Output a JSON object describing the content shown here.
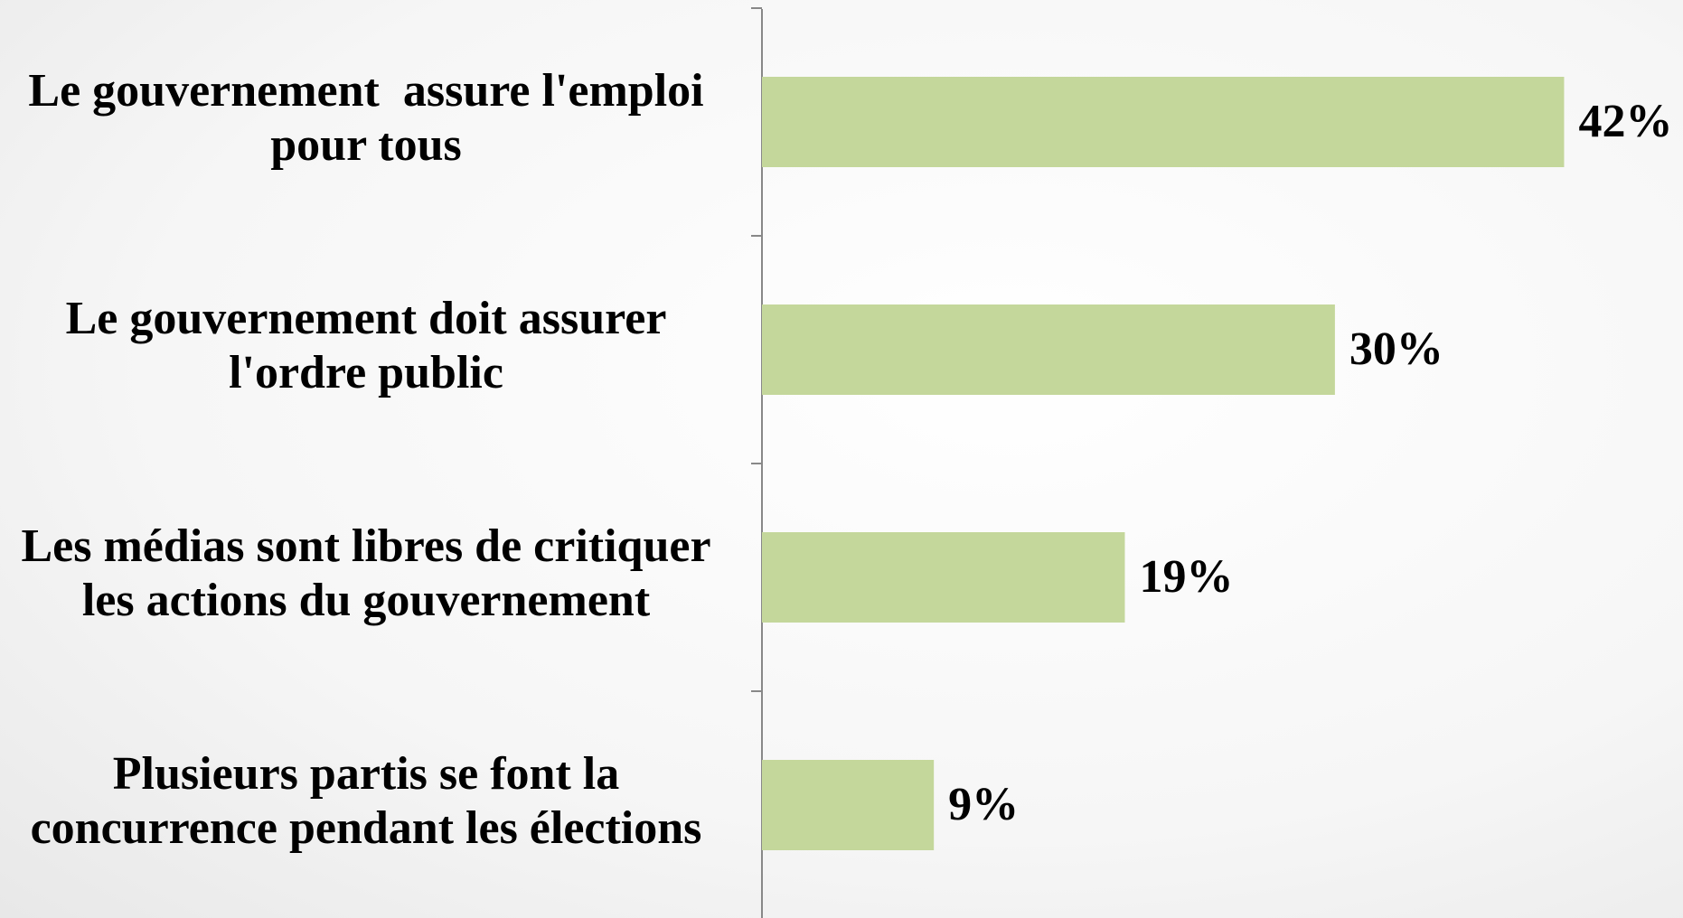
{
  "chart_data": {
    "type": "bar",
    "orientation": "horizontal",
    "categories": [
      [
        "Le gouvernement  assure l'emploi",
        "pour tous"
      ],
      [
        "Le gouvernement doit assurer",
        "l'ordre public"
      ],
      [
        "Les médias sont libres de critiquer",
        "les actions du gouvernement"
      ],
      [
        "Plusieurs partis se font la",
        "concurrence pendant les élections"
      ]
    ],
    "values": [
      42,
      30,
      19,
      9
    ],
    "value_labels": [
      "42%",
      "30%",
      "19%",
      "9%"
    ],
    "color": "#c4d79b"
  }
}
